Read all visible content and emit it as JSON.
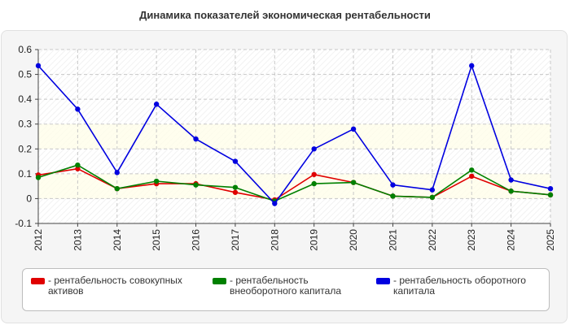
{
  "chart_data": {
    "type": "line",
    "title": "Динамика показателей экономическая рентабельности",
    "x": [
      "2012",
      "2013",
      "2014",
      "2015",
      "2016",
      "2017",
      "2018",
      "2019",
      "2020",
      "2021",
      "2022",
      "2023",
      "2024",
      "2025"
    ],
    "ylim": [
      -0.1,
      0.6
    ],
    "yticks": [
      "-0.1",
      "0",
      "0.1",
      "0.2",
      "0.3",
      "0.4",
      "0.5",
      "0.6"
    ],
    "grid": true,
    "legend_position": "bottom",
    "series": [
      {
        "name": "рентабельность совокупных активов",
        "color": "#e00000",
        "values": [
          0.095,
          0.12,
          0.04,
          0.06,
          0.06,
          0.025,
          -0.005,
          0.097,
          0.065,
          0.01,
          0.005,
          0.09,
          0.03,
          0.015
        ]
      },
      {
        "name": "рентабельность внеоборотного капитала",
        "color": "#008000",
        "values": [
          0.085,
          0.135,
          0.04,
          0.07,
          0.055,
          0.045,
          -0.01,
          0.06,
          0.065,
          0.01,
          0.005,
          0.115,
          0.03,
          0.015
        ]
      },
      {
        "name": "рентабельность оборотного капитала",
        "color": "#0000e0",
        "values": [
          0.535,
          0.36,
          0.105,
          0.38,
          0.24,
          0.15,
          -0.02,
          0.2,
          0.28,
          0.055,
          0.035,
          0.535,
          0.075,
          0.04
        ]
      }
    ]
  },
  "legend_items": [
    {
      "label": "- рентабельность совокупных активов",
      "color": "#e00000"
    },
    {
      "label": "- рентабельность внеоборотного капитала",
      "color": "#008000"
    },
    {
      "label": "- рентабельность оборотного капитала",
      "color": "#0000e0"
    }
  ]
}
